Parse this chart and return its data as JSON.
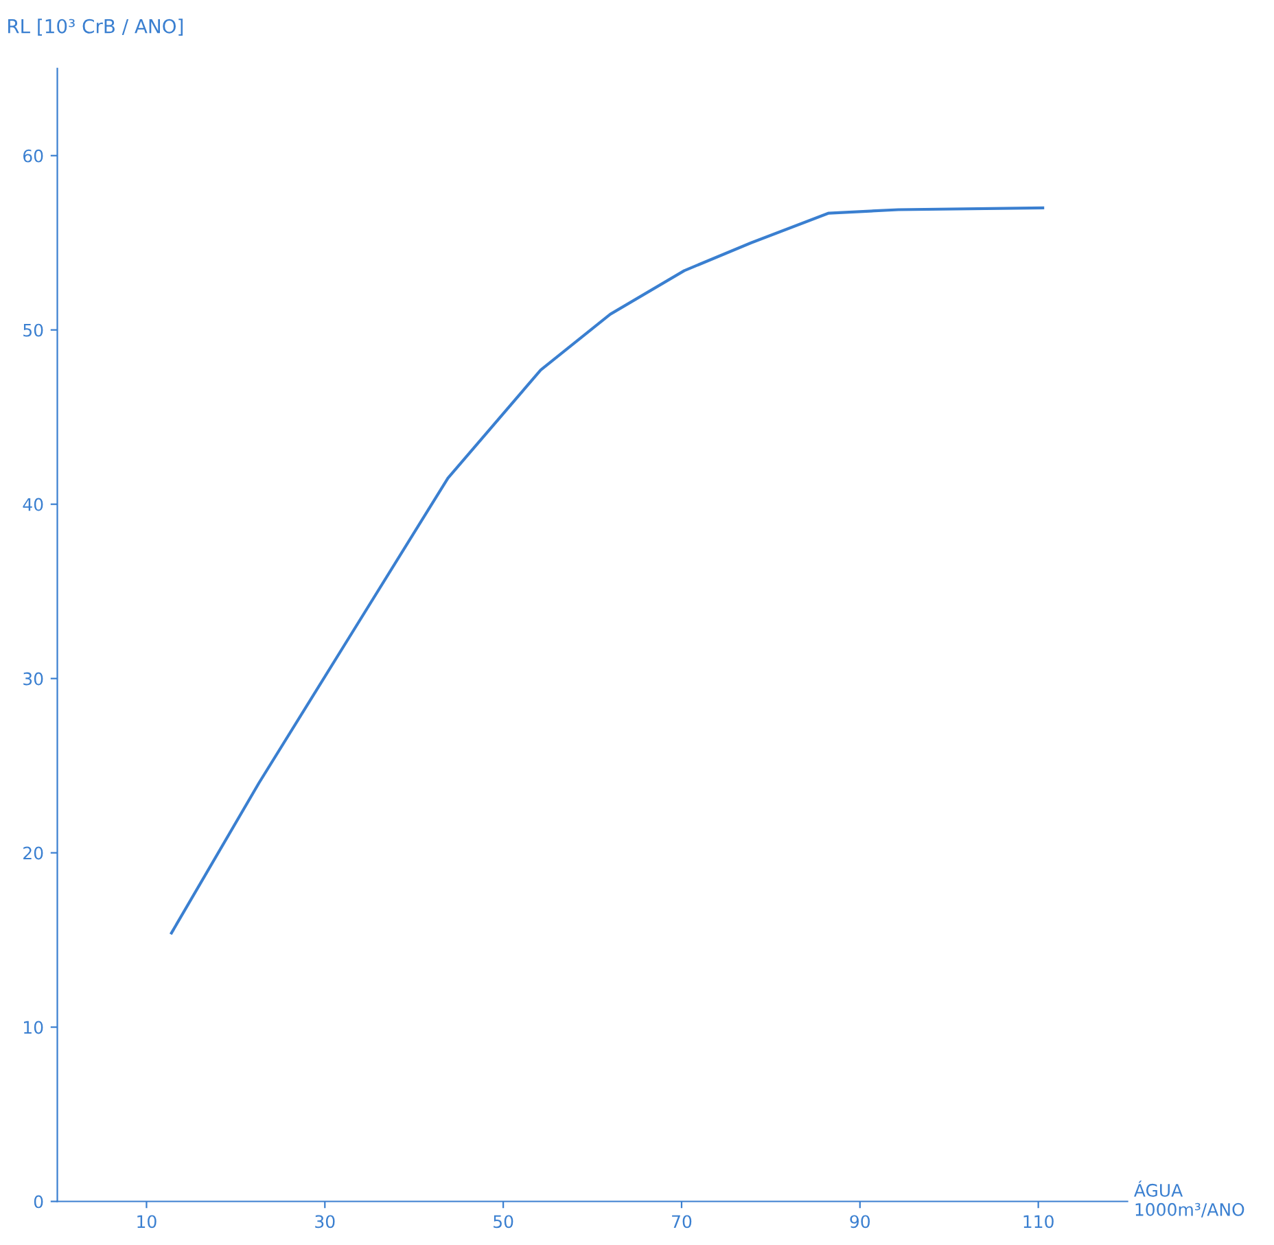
{
  "chart_data": {
    "type": "line",
    "xlabel": "ÁGUA\n1000m³/ANO",
    "ylabel": "RL [10³ CrB / ANO]",
    "x": [
      12.8,
      22.6,
      43.8,
      54.2,
      62.0,
      70.3,
      77.8,
      86.5,
      94.3,
      110.5
    ],
    "series": [
      {
        "color": "#3a7fd0",
        "values": [
          15.4,
          24.0,
          41.5,
          47.7,
          50.9,
          53.4,
          55.0,
          56.7,
          56.9,
          57.0
        ]
      }
    ],
    "xlim": [
      0,
      120
    ],
    "ylim": [
      0,
      65
    ],
    "xticks": [
      10,
      30,
      50,
      70,
      90,
      110
    ],
    "yticks": [
      0,
      10,
      20,
      30,
      40,
      50,
      60
    ],
    "grid": false,
    "legend": false,
    "marker": "none",
    "line_style": "solid"
  }
}
